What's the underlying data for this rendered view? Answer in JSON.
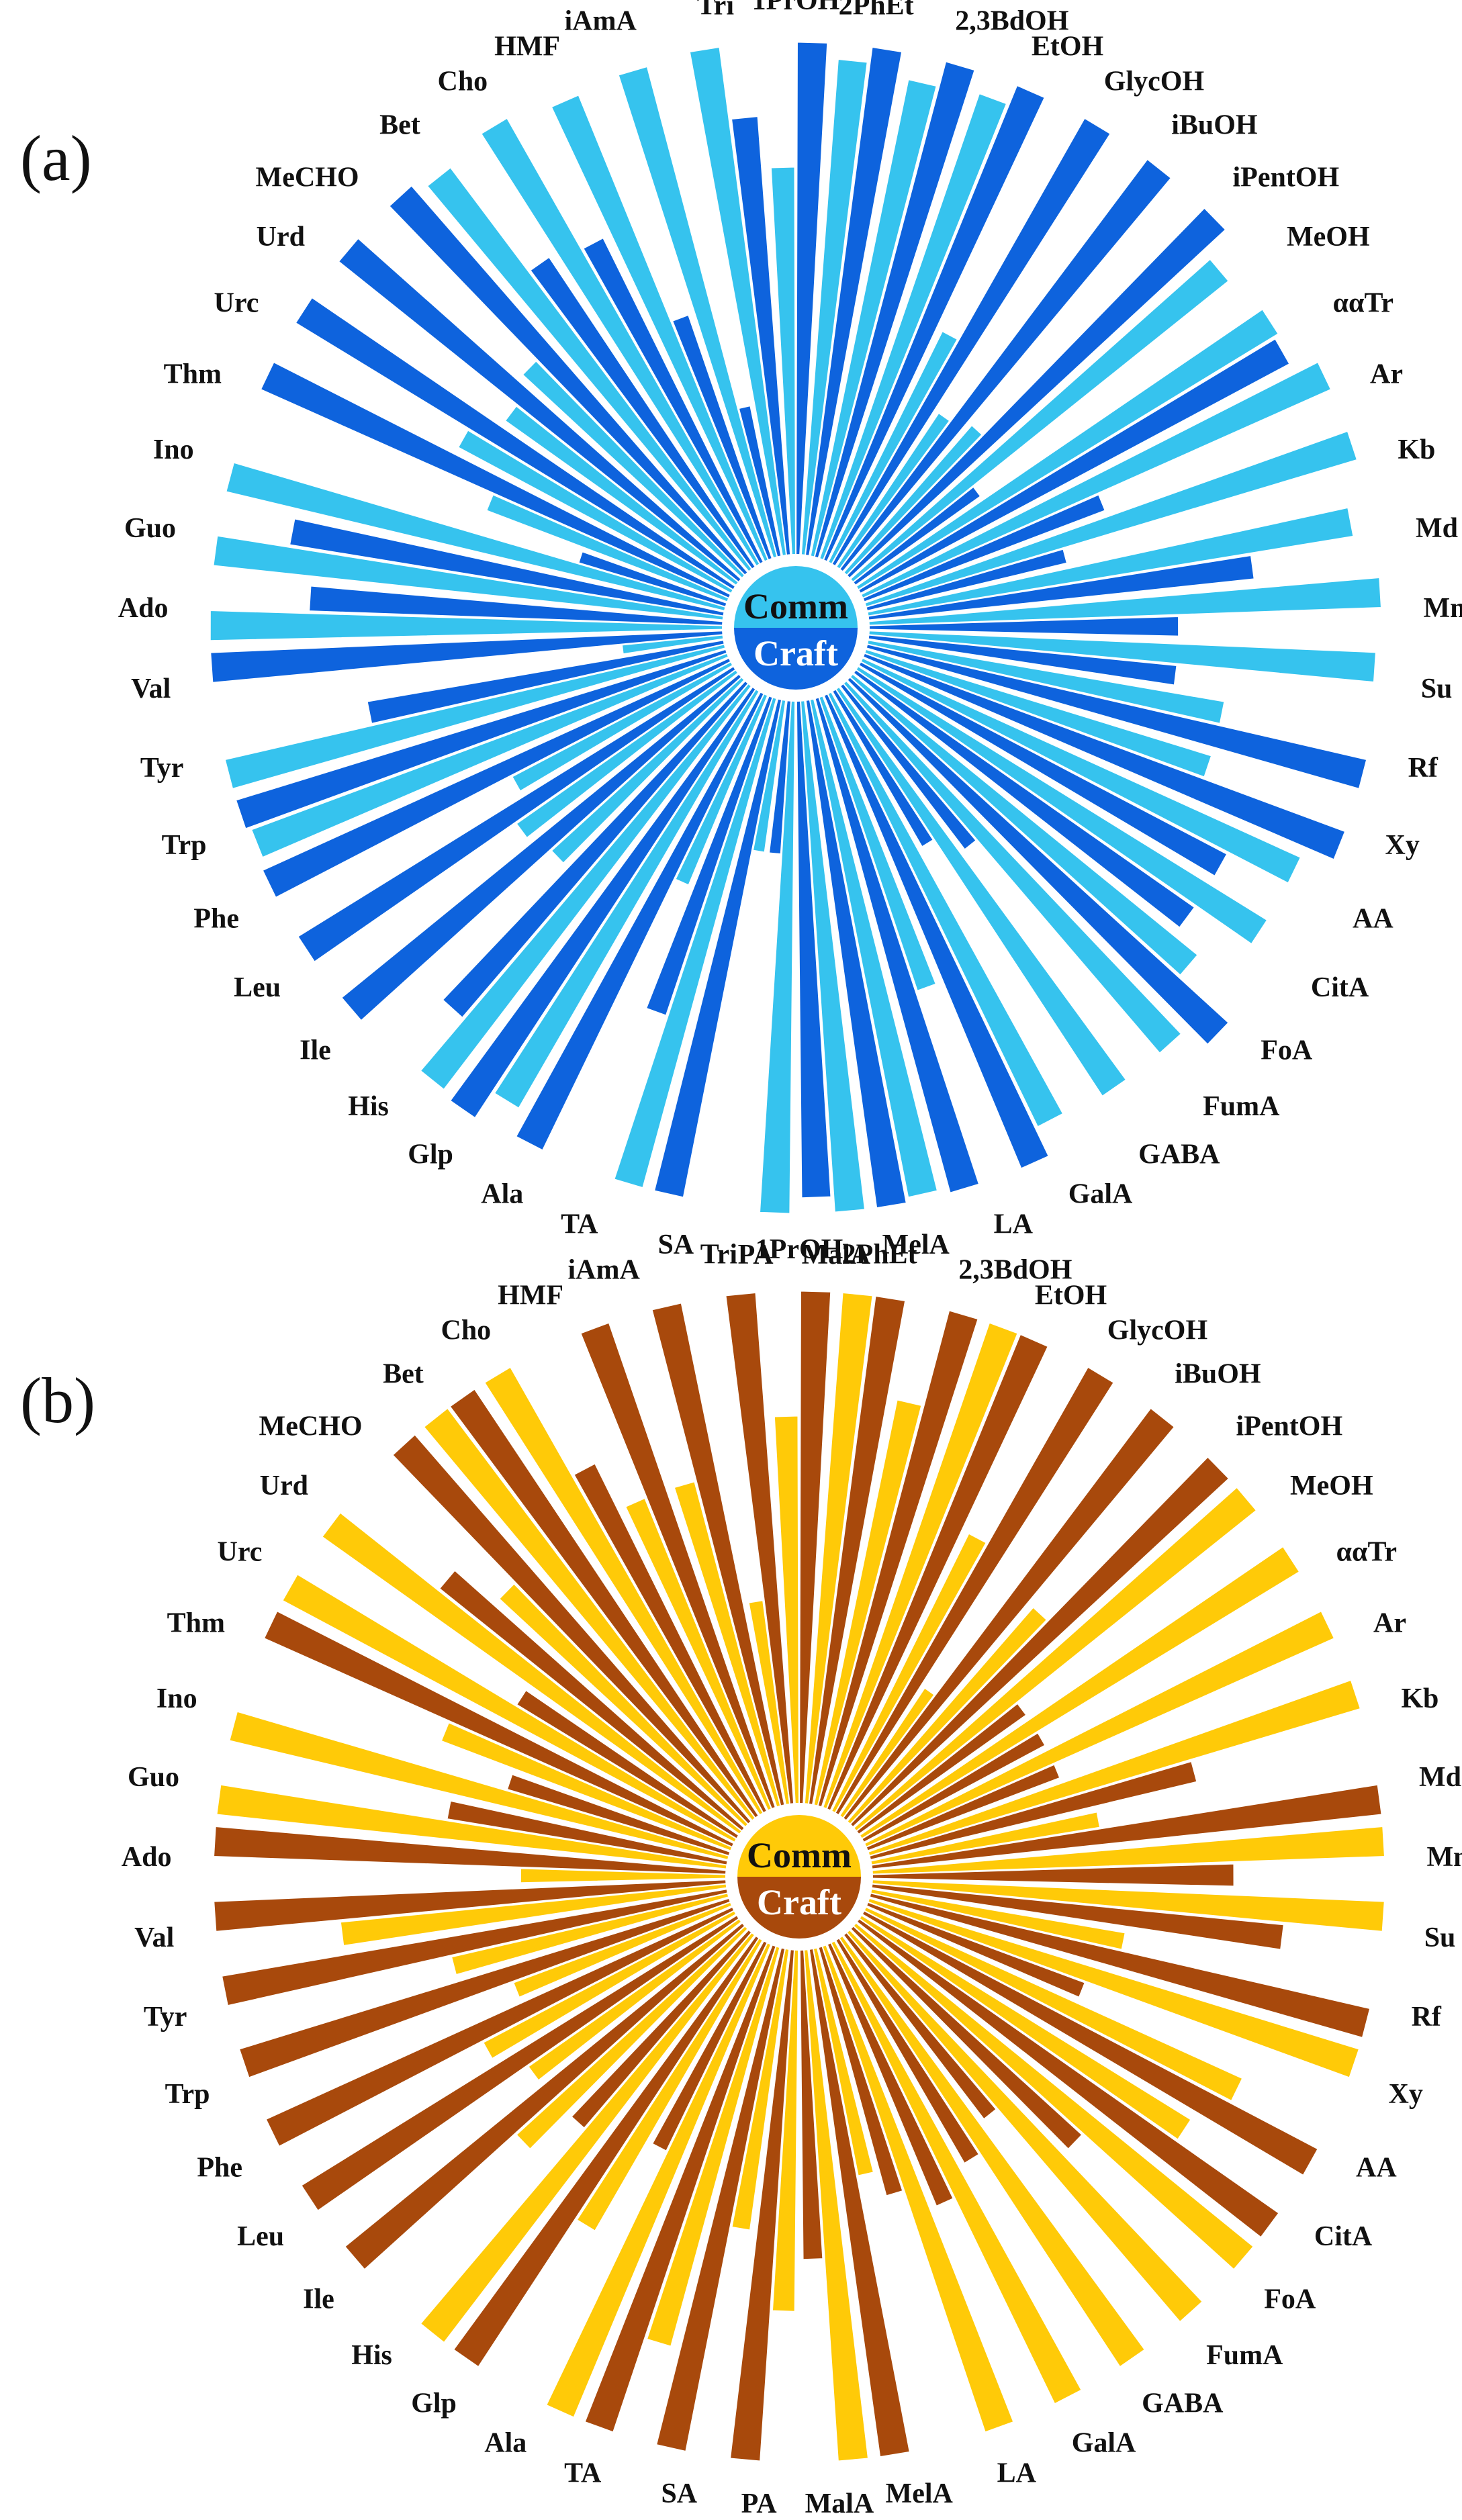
{
  "chart_data": [
    {
      "type": "radial-bar",
      "panel": "(a)",
      "center": {
        "top_label": "Comm",
        "bottom_label": "Craft"
      },
      "colors": {
        "Comm": "#36C3EE",
        "Craft": "#0E63DD"
      },
      "categories": [
        "1PrOH",
        "2PhEt",
        "2,3BdOH",
        "EtOH",
        "GlycOH",
        "iBuOH",
        "iPentOH",
        "MeOH",
        "ααTr",
        "Ar",
        "Kb",
        "Md",
        "Mn",
        "Su",
        "Rf",
        "Xy",
        "AA",
        "CitA",
        "FoA",
        "FumA",
        "GABA",
        "GalA",
        "LA",
        "MelA",
        "MalA",
        "PA",
        "SA",
        "TA",
        "Ala",
        "Glp",
        "His",
        "Ile",
        "Leu",
        "Phe",
        "Trp",
        "Tyr",
        "Val",
        "Ado",
        "Guo",
        "Ino",
        "Thm",
        "Urc",
        "Urd",
        "MeCHO",
        "Bet",
        "Cho",
        "HMF",
        "iAmA",
        "Tri"
      ],
      "series": [
        {
          "name": "Comm",
          "values": [
            0.75,
            0.96,
            0.94,
            0.95,
            0.5,
            0.36,
            0.38,
            0.93,
            0.95,
            0.99,
            0.99,
            0.95,
            0.99,
            0.98,
            0.7,
            0.7,
            0.93,
            0.93,
            0.86,
            0.94,
            0.94,
            0.93,
            0.6,
            0.98,
            0.99,
            0.99,
            0.3,
            0.98,
            0.4,
            0.93,
            0.98,
            0.5,
            0.52,
            0.48,
            0.98,
            0.99,
            0.2,
            0.99,
            0.99,
            0.99,
            0.5,
            0.6,
            0.55,
            0.58,
            0.97,
            0.99,
            0.97,
            0.98,
            0.99
          ]
        },
        {
          "name": "Craft",
          "values": [
            0.99,
            0.99,
            0.99,
            0.99,
            0.99,
            0.99,
            0.99,
            0.3,
            0.94,
            0.5,
            0.4,
            0.75,
            0.6,
            0.6,
            0.99,
            0.99,
            0.8,
            0.8,
            0.99,
            0.4,
            0.35,
            0.99,
            0.99,
            0.99,
            0.96,
            0.3,
            0.98,
            0.65,
            0.98,
            0.99,
            0.85,
            0.99,
            0.99,
            0.99,
            0.99,
            0.7,
            0.99,
            0.8,
            0.85,
            0.3,
            0.99,
            0.99,
            0.99,
            0.99,
            0.72,
            0.7,
            0.5,
            0.3,
            0.85
          ]
        }
      ]
    },
    {
      "type": "radial-bar",
      "panel": "(b)",
      "center": {
        "top_label": "Comm",
        "bottom_label": "Craft"
      },
      "colors": {
        "Comm": "#FFCA08",
        "Craft": "#A8490C"
      },
      "categories": [
        "1PrOH",
        "2PhEt",
        "2,3BdOH",
        "EtOH",
        "GlycOH",
        "iBuOH",
        "iPentOH",
        "MeOH",
        "ααTr",
        "Ar",
        "Kb",
        "Md",
        "Mn",
        "Su",
        "Rf",
        "Xy",
        "AA",
        "CitA",
        "FoA",
        "FumA",
        "GABA",
        "GalA",
        "LA",
        "MelA",
        "MalA",
        "PA",
        "SA",
        "TA",
        "Ala",
        "Glp",
        "His",
        "Ile",
        "Leu",
        "Phe",
        "Trp",
        "Tyr",
        "Val",
        "Ado",
        "Guo",
        "Ino",
        "Thm",
        "Urc",
        "Urd",
        "MeCHO",
        "Bet",
        "Cho",
        "HMF",
        "iAmA",
        "Tri"
      ],
      "series": [
        {
          "name": "Comm",
          "values": [
            0.75,
            0.99,
            0.8,
            0.99,
            0.6,
            0.3,
            0.55,
            0.99,
            0.99,
            0.99,
            0.99,
            0.45,
            0.99,
            0.99,
            0.5,
            0.99,
            0.8,
            0.75,
            0.99,
            0.99,
            0.99,
            0.99,
            0.99,
            0.45,
            0.99,
            0.7,
            0.55,
            0.8,
            0.99,
            0.65,
            0.99,
            0.6,
            0.5,
            0.55,
            0.45,
            0.55,
            0.75,
            0.4,
            0.99,
            0.99,
            0.6,
            0.99,
            0.99,
            0.65,
            0.99,
            0.99,
            0.65,
            0.65,
            0.4
          ]
        },
        {
          "name": "Craft",
          "values": [
            0.99,
            0.99,
            0.99,
            0.99,
            0.99,
            0.99,
            0.99,
            0.4,
            0.4,
            0.4,
            0.65,
            0.99,
            0.7,
            0.8,
            0.99,
            0.45,
            0.99,
            0.99,
            0.6,
            0.45,
            0.5,
            0.55,
            0.5,
            0.99,
            0.6,
            0.99,
            0.99,
            0.99,
            0.45,
            0.99,
            0.5,
            0.99,
            0.99,
            0.99,
            0.99,
            0.99,
            0.99,
            0.99,
            0.55,
            0.45,
            0.99,
            0.5,
            0.75,
            0.99,
            0.99,
            0.75,
            0.99,
            0.99,
            0.99
          ]
        }
      ]
    }
  ]
}
